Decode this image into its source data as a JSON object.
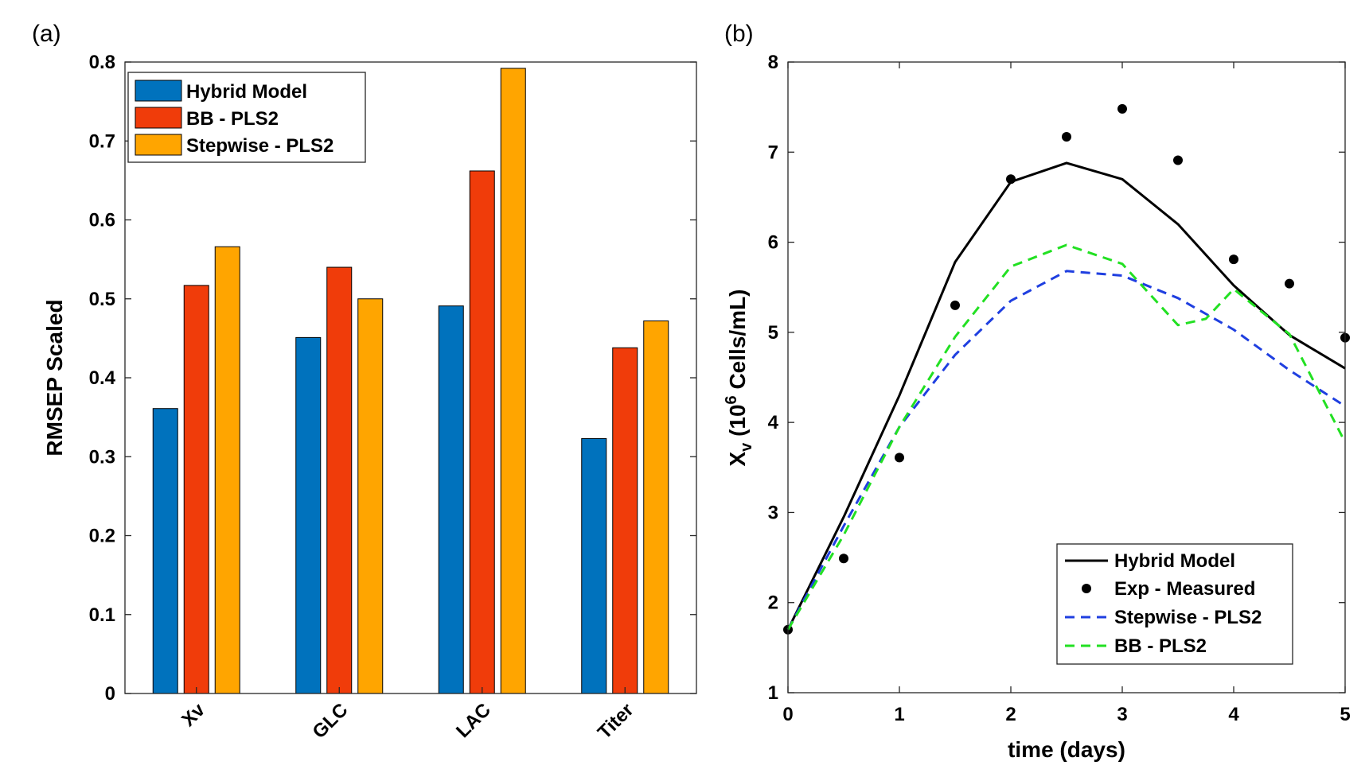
{
  "panels": {
    "a": "(a)",
    "b": "(b)"
  },
  "chart_data": [
    {
      "type": "bar",
      "ylabel": "RMSEP Scaled",
      "xlabel": "",
      "ylim": [
        0,
        0.8
      ],
      "yticks": [
        "0",
        "0.1",
        "0.2",
        "0.3",
        "0.4",
        "0.5",
        "0.6",
        "0.7",
        "0.8"
      ],
      "categories": [
        "Xv",
        "GLC",
        "LAC",
        "Titer"
      ],
      "series": [
        {
          "name": "Hybrid Model",
          "color": "#0072BD",
          "values": [
            0.361,
            0.451,
            0.491,
            0.323
          ]
        },
        {
          "name": "BB - PLS2",
          "color": "#F03C0A",
          "values": [
            0.517,
            0.54,
            0.662,
            0.438
          ]
        },
        {
          "name": "Stepwise - PLS2",
          "color": "#FFA500",
          "values": [
            0.566,
            0.5,
            0.792,
            0.472
          ]
        }
      ],
      "legend": "top-left",
      "grid": false
    },
    {
      "type": "line",
      "xlabel": "time (days)",
      "ylabel_main": "X",
      "ylabel_sub": "v",
      "ylabel_open": " (10",
      "ylabel_sup": "6",
      "ylabel_rest": " Cells/mL)",
      "xlim": [
        0,
        5
      ],
      "ylim": [
        1,
        8
      ],
      "xticks": [
        "0",
        "1",
        "2",
        "3",
        "4",
        "5"
      ],
      "yticks": [
        "1",
        "2",
        "3",
        "4",
        "5",
        "6",
        "7",
        "8"
      ],
      "series": [
        {
          "name": "Hybrid Model",
          "style": "solid",
          "color": "#000000",
          "x": [
            0,
            0.5,
            1,
            1.5,
            2,
            2.5,
            3,
            3.5,
            4,
            4.5,
            5
          ],
          "y": [
            1.7,
            2.95,
            4.3,
            5.78,
            6.67,
            6.88,
            6.7,
            6.2,
            5.52,
            4.97,
            4.6
          ]
        },
        {
          "name": "Exp - Measured",
          "style": "markers",
          "color": "#000000",
          "x": [
            0,
            0.5,
            1,
            1.5,
            2,
            2.5,
            3,
            3.5,
            4,
            4.5,
            5
          ],
          "y": [
            1.7,
            2.49,
            3.61,
            5.3,
            6.7,
            7.17,
            7.48,
            6.91,
            5.81,
            5.54,
            4.94
          ]
        },
        {
          "name": "Stepwise - PLS2",
          "style": "dashed",
          "color": "#1F3FE0",
          "x": [
            0,
            0.5,
            1,
            1.5,
            2,
            2.5,
            3,
            3.5,
            4,
            4.5,
            5
          ],
          "y": [
            1.7,
            2.85,
            3.95,
            4.75,
            5.35,
            5.68,
            5.63,
            5.38,
            5.03,
            4.58,
            4.18
          ]
        },
        {
          "name": "BB - PLS2",
          "style": "dashed",
          "color": "#22E022",
          "x": [
            0,
            0.5,
            1,
            1.5,
            2,
            2.5,
            3,
            3.5,
            3.75,
            4,
            4.5,
            5
          ],
          "y": [
            1.7,
            2.75,
            3.95,
            4.95,
            5.73,
            5.97,
            5.76,
            5.08,
            5.15,
            5.48,
            4.98,
            3.78
          ]
        }
      ],
      "legend": "bottom-right",
      "grid": false
    }
  ]
}
